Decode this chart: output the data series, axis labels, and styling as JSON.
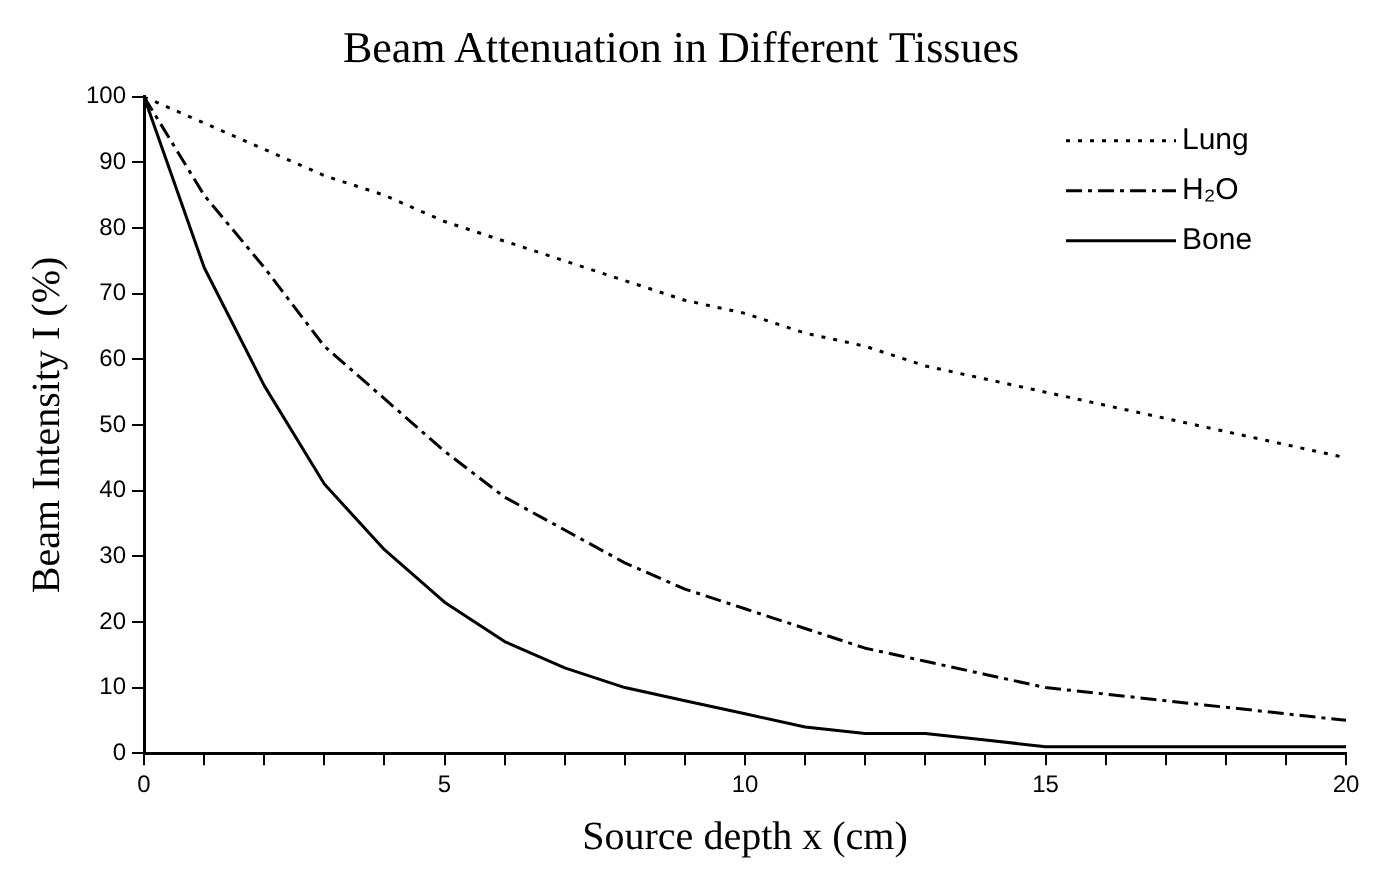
{
  "chart_data": {
    "type": "line",
    "title": "Beam Attenuation in Different Tissues",
    "xlabel": "Source depth x (cm)",
    "ylabel": "Beam Intensity I (%)",
    "x": [
      0,
      1,
      2,
      3,
      4,
      5,
      6,
      7,
      8,
      9,
      10,
      11,
      12,
      13,
      14,
      15,
      16,
      17,
      18,
      19,
      20
    ],
    "series": [
      {
        "name": "Lung",
        "color": "#000000",
        "line_style": "dotted",
        "values": [
          100,
          96,
          92,
          88,
          85,
          81,
          78,
          75,
          72,
          69,
          67,
          64,
          62,
          59,
          57,
          55,
          53,
          51,
          49,
          47,
          45
        ]
      },
      {
        "name": "H₂O",
        "color": "#000000",
        "line_style": "dashed",
        "values": [
          100,
          85,
          74,
          62,
          54,
          46,
          39,
          34,
          29,
          25,
          22,
          19,
          16,
          14,
          12,
          10,
          9,
          8,
          7,
          6,
          5
        ]
      },
      {
        "name": "Bone",
        "color": "#000000",
        "line_style": "solid",
        "values": [
          100,
          74,
          56,
          41,
          31,
          23,
          17,
          13,
          10,
          8,
          6,
          4,
          3,
          3,
          2,
          1,
          1,
          1,
          1,
          1,
          1
        ]
      }
    ],
    "xlim": [
      0,
      20
    ],
    "xticks": [
      0,
      {
        "value": 1,
        "label": null
      },
      {
        "value": 2,
        "label": null
      },
      {
        "value": 3,
        "label": null
      },
      {
        "value": 4,
        "label": null
      },
      5,
      {
        "value": 6,
        "label": null
      },
      {
        "value": 7,
        "label": null
      },
      {
        "value": 8,
        "label": null
      },
      {
        "value": 9,
        "label": null
      },
      10,
      {
        "value": 11,
        "label": null
      },
      {
        "value": 12,
        "label": null
      },
      {
        "value": 13,
        "label": null
      },
      {
        "value": 14,
        "label": null
      },
      15,
      {
        "value": 16,
        "label": null
      },
      {
        "value": 17,
        "label": null
      },
      {
        "value": 18,
        "label": null
      },
      {
        "value": 19,
        "label": null
      },
      20
    ],
    "ylim": [
      0,
      100
    ],
    "yticks": [
      0,
      10,
      20,
      30,
      40,
      50,
      60,
      70,
      80,
      90,
      100
    ],
    "grid": false,
    "legend": "top right",
    "marker": "none"
  }
}
